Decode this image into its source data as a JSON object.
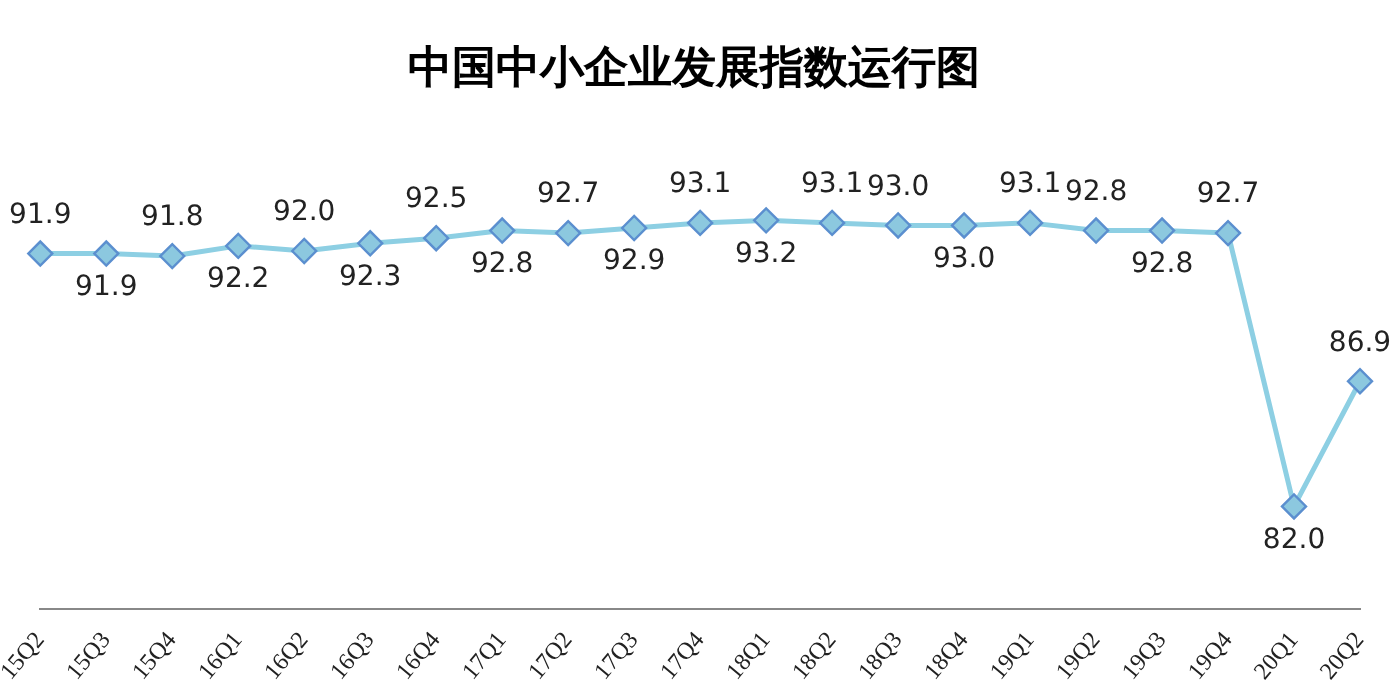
{
  "chart_data": {
    "type": "line",
    "title": "中国中小企业发展指数运行图",
    "categories": [
      "15Q2",
      "15Q3",
      "15Q4",
      "16Q1",
      "16Q2",
      "16Q3",
      "16Q4",
      "17Q1",
      "17Q2",
      "17Q3",
      "17Q4",
      "18Q1",
      "18Q2",
      "18Q3",
      "18Q4",
      "19Q1",
      "19Q2",
      "19Q3",
      "19Q4",
      "20Q1",
      "20Q2"
    ],
    "series": [
      {
        "color": "#8dcfe3",
        "values": [
          91.9,
          91.9,
          91.8,
          92.2,
          92.0,
          92.3,
          92.5,
          92.8,
          92.7,
          92.9,
          93.1,
          93.2,
          93.1,
          93.0,
          93.0,
          93.1,
          92.8,
          92.8,
          92.7,
          82.0,
          86.9
        ],
        "value_labels": [
          "91.9",
          "91.9",
          "91.8",
          "92.2",
          "92.0",
          "92.3",
          "92.5",
          "92.8",
          "92.7",
          "92.9",
          "93.1",
          "93.2",
          "93.1",
          "93.0",
          "93.0",
          "93.1",
          "92.8",
          "92.8",
          "92.7",
          "82.0",
          "86.9"
        ]
      }
    ],
    "tick_labels": "x",
    "grid": false,
    "legend": false,
    "marker": "diamond",
    "line_style": "solid"
  }
}
